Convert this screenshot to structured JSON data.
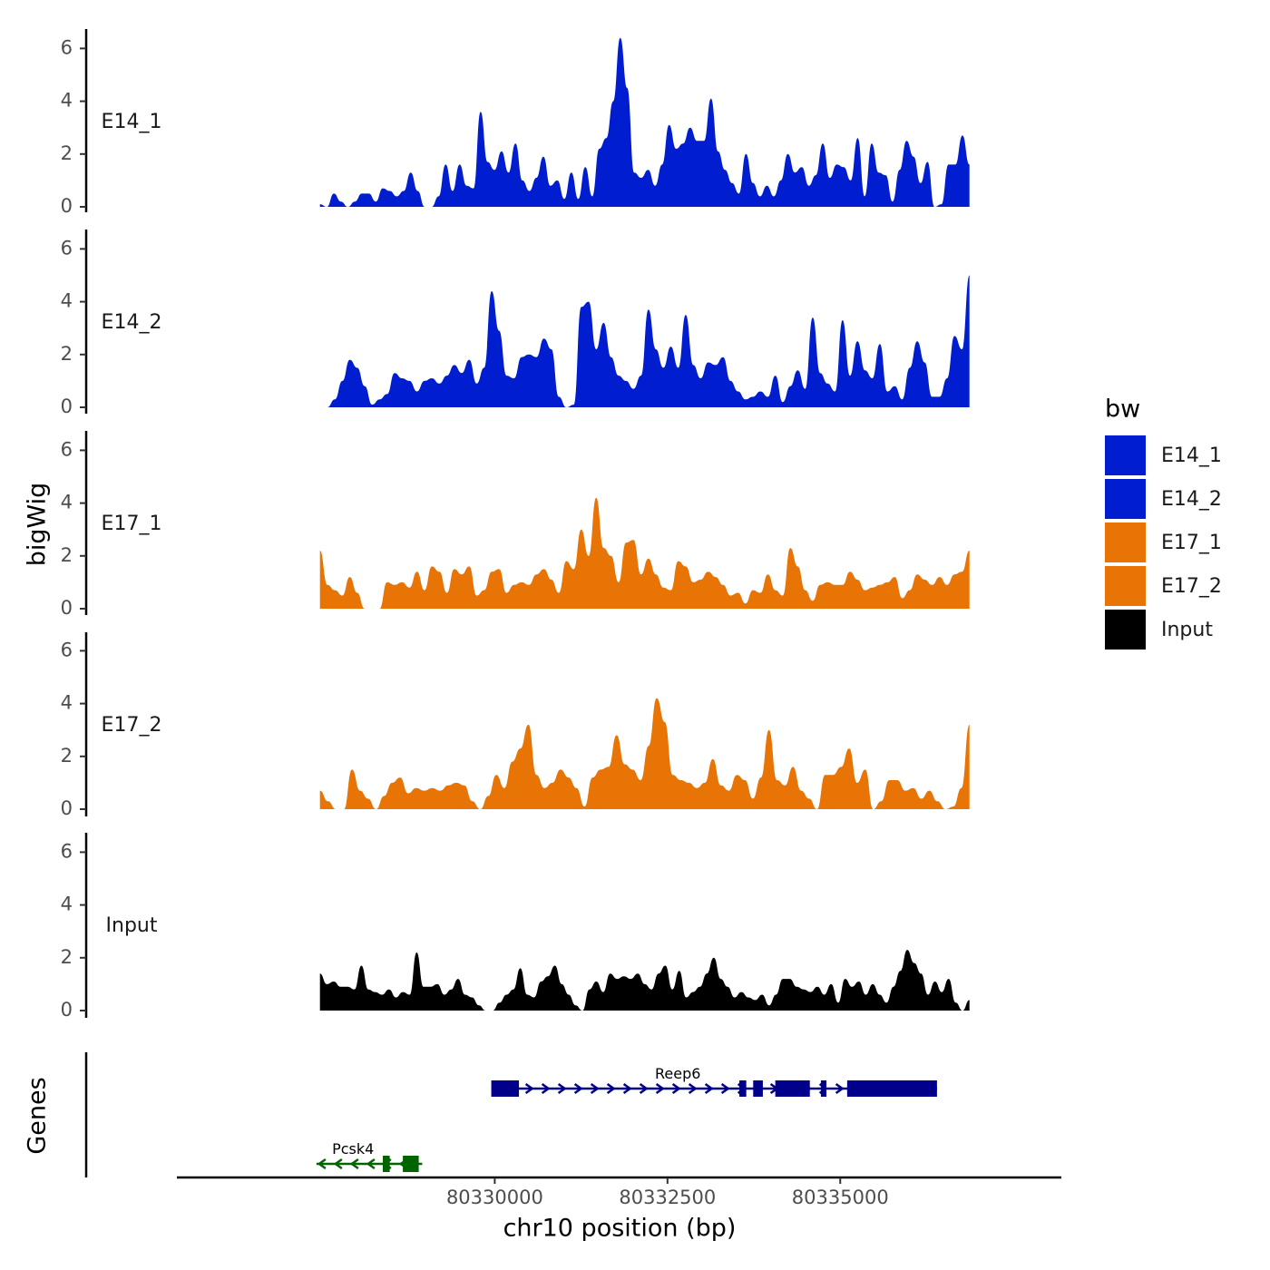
{
  "chart_data": {
    "type": "area",
    "ylabel": "bigWig",
    "genes_label": "Genes",
    "xlabel": "chr10 position (bp)",
    "xlim": [
      80325400,
      80338200
    ],
    "ylim": [
      0,
      6.6
    ],
    "y_ticks": [
      0,
      2,
      4,
      6
    ],
    "x_ticks": [
      {
        "value": 80330000,
        "label": "80330000"
      },
      {
        "value": 80332500,
        "label": "80332500"
      },
      {
        "value": 80335000,
        "label": "80335000"
      }
    ],
    "legend": {
      "title": "bw",
      "entries": [
        {
          "name": "E14_1",
          "color": "#001ecf"
        },
        {
          "name": "E14_2",
          "color": "#001ecf"
        },
        {
          "name": "E17_1",
          "color": "#e87405"
        },
        {
          "name": "E17_2",
          "color": "#e87405"
        },
        {
          "name": "Input",
          "color": "#000000"
        }
      ]
    },
    "x_range": [
      80327470,
      80336870
    ],
    "series": [
      {
        "name": "E14_1",
        "color": "#001ecf",
        "values": [
          0.1,
          0.0,
          0.5,
          0.2,
          0.0,
          0.2,
          0.5,
          0.5,
          0.2,
          0.7,
          0.6,
          0.4,
          0.6,
          1.3,
          0.6,
          0.0,
          0.0,
          0.4,
          1.6,
          0.6,
          1.6,
          0.8,
          0.7,
          3.6,
          1.7,
          1.4,
          2.1,
          1.3,
          2.4,
          1.0,
          0.6,
          1.1,
          1.9,
          0.8,
          1.0,
          0.3,
          1.3,
          0.3,
          1.5,
          0.4,
          2.2,
          2.6,
          4.0,
          6.4,
          4.5,
          1.3,
          1.1,
          1.4,
          0.8,
          1.6,
          3.1,
          2.2,
          2.4,
          3.0,
          2.5,
          2.5,
          4.1,
          2.1,
          1.4,
          0.9,
          0.5,
          2.0,
          0.9,
          0.4,
          0.8,
          0.4,
          1.0,
          2.0,
          1.3,
          1.5,
          0.8,
          1.2,
          2.4,
          1.1,
          1.6,
          1.5,
          1.0,
          2.6,
          0.4,
          2.4,
          1.3,
          1.2,
          0.2,
          1.4,
          2.5,
          1.9,
          0.9,
          1.7,
          0.0,
          0.1,
          1.6,
          1.6,
          2.7,
          1.6
        ]
      },
      {
        "name": "E14_2",
        "color": "#001ecf",
        "values": [
          0.0,
          0.0,
          0.3,
          1.0,
          1.8,
          1.5,
          0.8,
          0.1,
          0.3,
          0.5,
          1.3,
          1.1,
          1.0,
          0.6,
          1.0,
          1.1,
          0.9,
          1.2,
          1.6,
          1.3,
          1.8,
          0.9,
          1.5,
          4.4,
          2.9,
          1.2,
          1.1,
          1.9,
          2.0,
          1.9,
          2.6,
          2.2,
          0.4,
          0.0,
          0.1,
          3.8,
          4.0,
          2.2,
          3.2,
          1.9,
          1.2,
          1.0,
          0.7,
          1.2,
          3.7,
          2.2,
          1.5,
          2.3,
          1.5,
          3.5,
          1.6,
          1.1,
          1.7,
          1.6,
          1.9,
          1.0,
          0.6,
          0.3,
          0.4,
          0.6,
          0.4,
          1.2,
          0.2,
          0.8,
          1.4,
          0.7,
          3.4,
          1.3,
          0.9,
          0.6,
          3.3,
          1.2,
          2.5,
          1.4,
          1.1,
          2.4,
          0.6,
          0.8,
          0.3,
          1.5,
          2.5,
          1.7,
          0.4,
          0.4,
          1.1,
          2.7,
          2.2,
          5.0
        ]
      },
      {
        "name": "E17_1",
        "color": "#e87405",
        "values": [
          2.2,
          0.9,
          0.7,
          0.5,
          1.2,
          0.6,
          0.0,
          0.0,
          0.0,
          1.0,
          0.9,
          1.0,
          0.8,
          1.4,
          0.7,
          1.6,
          1.4,
          0.6,
          1.5,
          1.3,
          1.6,
          0.5,
          0.7,
          1.4,
          1.5,
          0.6,
          0.9,
          1.0,
          0.9,
          1.3,
          1.5,
          1.1,
          0.6,
          1.8,
          1.5,
          3.0,
          2.0,
          4.2,
          2.3,
          2.0,
          1.0,
          2.5,
          2.6,
          1.3,
          1.9,
          1.3,
          0.8,
          0.7,
          1.8,
          1.6,
          1.0,
          1.1,
          1.4,
          1.2,
          0.9,
          0.5,
          0.6,
          0.2,
          0.7,
          0.6,
          1.3,
          0.7,
          0.5,
          2.3,
          1.6,
          0.7,
          0.3,
          0.9,
          1.0,
          0.9,
          0.9,
          1.4,
          1.1,
          0.7,
          0.8,
          0.9,
          1.0,
          1.2,
          0.4,
          0.7,
          1.3,
          1.1,
          0.9,
          1.2,
          0.9,
          1.3,
          1.4,
          2.2
        ]
      },
      {
        "name": "E17_2",
        "color": "#e87405",
        "values": [
          0.7,
          0.3,
          0.0,
          0.0,
          1.5,
          0.7,
          0.4,
          0.0,
          0.5,
          1.0,
          1.2,
          0.6,
          0.8,
          0.7,
          0.8,
          0.7,
          0.9,
          1.0,
          0.9,
          0.3,
          0.0,
          0.5,
          1.3,
          0.8,
          1.8,
          2.3,
          3.2,
          1.3,
          0.8,
          1.0,
          1.5,
          1.2,
          0.8,
          0.1,
          1.2,
          1.5,
          1.6,
          2.8,
          1.7,
          1.5,
          1.1,
          2.4,
          4.2,
          3.3,
          1.3,
          1.1,
          1.0,
          0.8,
          1.0,
          1.9,
          0.9,
          0.7,
          1.3,
          1.1,
          0.4,
          1.2,
          3.0,
          1.1,
          0.9,
          1.6,
          0.7,
          0.4,
          0.0,
          1.3,
          1.3,
          1.6,
          2.3,
          1.0,
          1.5,
          0.0,
          0.3,
          1.1,
          1.1,
          0.7,
          0.8,
          0.4,
          0.7,
          0.3,
          0.0,
          0.1,
          0.8,
          3.2
        ]
      },
      {
        "name": "Input",
        "color": "#000000",
        "values": [
          1.4,
          1.0,
          1.1,
          0.9,
          0.9,
          0.8,
          1.7,
          0.8,
          0.7,
          0.6,
          0.8,
          0.5,
          0.7,
          0.6,
          2.2,
          0.9,
          0.9,
          1.0,
          0.6,
          0.8,
          1.2,
          0.6,
          0.5,
          0.2,
          0.0,
          0.0,
          0.3,
          0.6,
          0.8,
          1.6,
          0.6,
          0.5,
          1.1,
          1.3,
          1.7,
          1.0,
          0.6,
          0.2,
          0.0,
          0.8,
          1.1,
          0.7,
          1.4,
          1.2,
          1.3,
          1.2,
          1.4,
          1.0,
          0.8,
          1.4,
          1.7,
          0.8,
          1.5,
          0.5,
          0.7,
          0.9,
          1.4,
          2.0,
          1.2,
          0.9,
          0.5,
          0.7,
          0.5,
          0.4,
          0.6,
          0.2,
          0.6,
          1.2,
          1.2,
          0.9,
          0.8,
          0.7,
          0.9,
          0.6,
          1.0,
          0.3,
          1.2,
          0.9,
          1.1,
          0.6,
          1.0,
          0.6,
          0.3,
          0.9,
          1.5,
          2.3,
          1.8,
          1.4,
          0.6,
          1.1,
          0.7,
          1.2,
          0.3,
          0.0,
          0.4
        ]
      }
    ],
    "genes": [
      {
        "name": "Reep6",
        "strand": "+",
        "color": "#00008b",
        "start": 80329950,
        "end": 80336400,
        "exons": [
          [
            80329950,
            80330350
          ],
          [
            80333540,
            80333640
          ],
          [
            80333740,
            80333880
          ],
          [
            80334060,
            80334560
          ],
          [
            80334720,
            80334800
          ],
          [
            80335100,
            80336400
          ]
        ]
      },
      {
        "name": "Pcsk4",
        "strand": "-",
        "color": "#006400",
        "start": 80327420,
        "end": 80328950,
        "exons": [
          [
            80328380,
            80328480
          ],
          [
            80328670,
            80328900
          ]
        ]
      }
    ]
  }
}
